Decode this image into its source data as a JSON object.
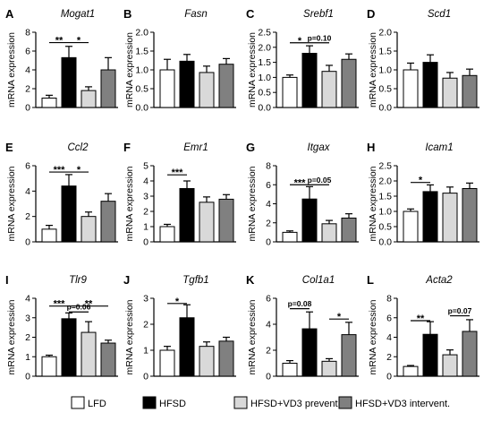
{
  "ylabel": "mRNA expression",
  "colors": {
    "LFD": "#ffffff",
    "HFSD": "#000000",
    "HFSD+VD3 prevent.": "#d9d9d9",
    "HFSD+VD3 intervent.": "#808080"
  },
  "legend": [
    {
      "name": "LFD",
      "color": "#ffffff"
    },
    {
      "name": "HFSD",
      "color": "#000000"
    },
    {
      "name": "HFSD+VD3 prevent.",
      "color": "#d9d9d9"
    },
    {
      "name": "HFSD+VD3 intervent.",
      "color": "#808080"
    }
  ],
  "chart_data": [
    {
      "type": "bar",
      "panel": "A",
      "title": "Mogat1",
      "ylabel": "mRNA expression",
      "categories": [
        "LFD",
        "HFSD",
        "HFSD+VD3 prevent.",
        "HFSD+VD3 intervent."
      ],
      "values": [
        1.0,
        5.3,
        1.8,
        4.0
      ],
      "errors": [
        0.3,
        1.2,
        0.4,
        1.3
      ],
      "ylim": [
        0,
        8
      ],
      "yticks": [
        0,
        2,
        4,
        6,
        8
      ],
      "annotations": [
        {
          "from": 0,
          "to": 1,
          "text": "**",
          "y": 6.9
        },
        {
          "from": 1,
          "to": 2,
          "text": "*",
          "y": 6.9
        }
      ]
    },
    {
      "type": "bar",
      "panel": "B",
      "title": "Fasn",
      "ylabel": "mRNA expression",
      "categories": [
        "LFD",
        "HFSD",
        "HFSD+VD3 prevent.",
        "HFSD+VD3 intervent."
      ],
      "values": [
        1.0,
        1.23,
        0.93,
        1.15
      ],
      "errors": [
        0.28,
        0.18,
        0.17,
        0.15
      ],
      "ylim": [
        0,
        2
      ],
      "yticks": [
        0.0,
        0.5,
        1.0,
        1.5,
        2.0
      ],
      "annotations": []
    },
    {
      "type": "bar",
      "panel": "C",
      "title": "Srebf1",
      "ylabel": "mRNA expression",
      "categories": [
        "LFD",
        "HFSD",
        "HFSD+VD3 prevent.",
        "HFSD+VD3 intervent."
      ],
      "values": [
        1.0,
        1.8,
        1.2,
        1.6
      ],
      "errors": [
        0.08,
        0.25,
        0.2,
        0.18
      ],
      "ylim": [
        0,
        2.5
      ],
      "yticks": [
        0.0,
        0.5,
        1.0,
        1.5,
        2.0,
        2.5
      ],
      "annotations": [
        {
          "from": 0,
          "to": 1,
          "text": "*",
          "y": 2.15
        },
        {
          "from": 1,
          "to": 2,
          "text": "p=0.10",
          "y": 2.15
        }
      ]
    },
    {
      "type": "bar",
      "panel": "D",
      "title": "Scd1",
      "ylabel": "mRNA expression",
      "categories": [
        "LFD",
        "HFSD",
        "HFSD+VD3 prevent.",
        "HFSD+VD3 intervent."
      ],
      "values": [
        1.0,
        1.2,
        0.78,
        0.85
      ],
      "errors": [
        0.18,
        0.2,
        0.15,
        0.17
      ],
      "ylim": [
        0,
        2
      ],
      "yticks": [
        0.0,
        0.5,
        1.0,
        1.5,
        2.0
      ],
      "annotations": []
    },
    {
      "type": "bar",
      "panel": "E",
      "title": "Ccl2",
      "ylabel": "mRNA expression",
      "categories": [
        "LFD",
        "HFSD",
        "HFSD+VD3 prevent.",
        "HFSD+VD3 intervent."
      ],
      "values": [
        1.0,
        4.4,
        2.0,
        3.2
      ],
      "errors": [
        0.3,
        0.9,
        0.35,
        0.6
      ],
      "ylim": [
        0,
        6
      ],
      "yticks": [
        0,
        2,
        4,
        6
      ],
      "annotations": [
        {
          "from": 0,
          "to": 1,
          "text": "***",
          "y": 5.5
        },
        {
          "from": 1,
          "to": 2,
          "text": "*",
          "y": 5.5
        }
      ]
    },
    {
      "type": "bar",
      "panel": "F",
      "title": "Emr1",
      "ylabel": "mRNA expression",
      "categories": [
        "LFD",
        "HFSD",
        "HFSD+VD3 prevent.",
        "HFSD+VD3 intervent."
      ],
      "values": [
        1.0,
        3.5,
        2.6,
        2.8
      ],
      "errors": [
        0.15,
        0.5,
        0.35,
        0.3
      ],
      "ylim": [
        0,
        5
      ],
      "yticks": [
        0,
        1,
        2,
        3,
        4,
        5
      ],
      "annotations": [
        {
          "from": 0,
          "to": 1,
          "text": "***",
          "y": 4.4
        }
      ]
    },
    {
      "type": "bar",
      "panel": "G",
      "title": "Itgax",
      "ylabel": "mRNA expression",
      "categories": [
        "LFD",
        "HFSD",
        "HFSD+VD3 prevent.",
        "HFSD+VD3 intervent."
      ],
      "values": [
        1.0,
        4.5,
        1.9,
        2.5
      ],
      "errors": [
        0.15,
        1.3,
        0.35,
        0.45
      ],
      "ylim": [
        0,
        8
      ],
      "yticks": [
        0,
        2,
        4,
        6,
        8
      ],
      "annotations": [
        {
          "from": 0,
          "to": 1,
          "text": "***",
          "y": 6.0
        },
        {
          "from": 1,
          "to": 2,
          "text": "p=0.05",
          "y": 6.0
        }
      ]
    },
    {
      "type": "bar",
      "panel": "H",
      "title": "Icam1",
      "ylabel": "mRNA expression",
      "categories": [
        "LFD",
        "HFSD",
        "HFSD+VD3 prevent.",
        "HFSD+VD3 intervent."
      ],
      "values": [
        1.0,
        1.65,
        1.6,
        1.75
      ],
      "errors": [
        0.08,
        0.22,
        0.2,
        0.18
      ],
      "ylim": [
        0,
        2.5
      ],
      "yticks": [
        0.0,
        0.5,
        1.0,
        1.5,
        2.0,
        2.5
      ],
      "annotations": [
        {
          "from": 0,
          "to": 1,
          "text": "*",
          "y": 1.95
        }
      ]
    },
    {
      "type": "bar",
      "panel": "I",
      "title": "Tlr9",
      "ylabel": "mRNA expression",
      "categories": [
        "LFD",
        "HFSD",
        "HFSD+VD3 prevent.",
        "HFSD+VD3 intervent."
      ],
      "values": [
        1.0,
        2.95,
        2.25,
        1.7
      ],
      "errors": [
        0.08,
        0.3,
        0.55,
        0.15
      ],
      "ylim": [
        0,
        4
      ],
      "yticks": [
        0,
        1,
        2,
        3,
        4
      ],
      "annotations": [
        {
          "from": 0,
          "to": 1,
          "text": "***",
          "y": 3.6
        },
        {
          "from": 1,
          "to": 3,
          "text": "**",
          "y": 3.6
        },
        {
          "from": 1,
          "to": 2,
          "text": "p=0.06",
          "y": 3.3
        }
      ]
    },
    {
      "type": "bar",
      "panel": "J",
      "title": "Tgfb1",
      "ylabel": "mRNA expression",
      "categories": [
        "LFD",
        "HFSD",
        "HFSD+VD3 prevent.",
        "HFSD+VD3 intervent."
      ],
      "values": [
        1.0,
        2.25,
        1.15,
        1.35
      ],
      "errors": [
        0.15,
        0.5,
        0.17,
        0.15
      ],
      "ylim": [
        0,
        3
      ],
      "yticks": [
        0,
        1,
        2,
        3
      ],
      "annotations": [
        {
          "from": 0,
          "to": 1,
          "text": "*",
          "y": 2.8
        }
      ]
    },
    {
      "type": "bar",
      "panel": "K",
      "title": "Col1a1",
      "ylabel": "mRNA expression",
      "categories": [
        "LFD",
        "HFSD",
        "HFSD+VD3 prevent.",
        "HFSD+VD3 intervent."
      ],
      "values": [
        1.0,
        3.65,
        1.15,
        3.2
      ],
      "errors": [
        0.2,
        1.3,
        0.2,
        0.95
      ],
      "ylim": [
        0,
        6
      ],
      "yticks": [
        0,
        2,
        4,
        6
      ],
      "annotations": [
        {
          "from": 0,
          "to": 1,
          "text": "p=0.08",
          "y": 5.2
        },
        {
          "from": 2,
          "to": 3,
          "text": "*",
          "y": 4.4
        }
      ]
    },
    {
      "type": "bar",
      "panel": "L",
      "title": "Acta2",
      "ylabel": "mRNA expression",
      "categories": [
        "LFD",
        "HFSD",
        "HFSD+VD3 prevent.",
        "HFSD+VD3 intervent."
      ],
      "values": [
        1.0,
        4.3,
        2.2,
        4.6
      ],
      "errors": [
        0.1,
        1.3,
        0.5,
        1.2
      ],
      "ylim": [
        0,
        8
      ],
      "yticks": [
        0,
        2,
        4,
        6,
        8
      ],
      "annotations": [
        {
          "from": 0,
          "to": 1,
          "text": "**",
          "y": 5.7
        },
        {
          "from": 2,
          "to": 3,
          "text": "p=0.07",
          "y": 6.2
        }
      ]
    }
  ]
}
